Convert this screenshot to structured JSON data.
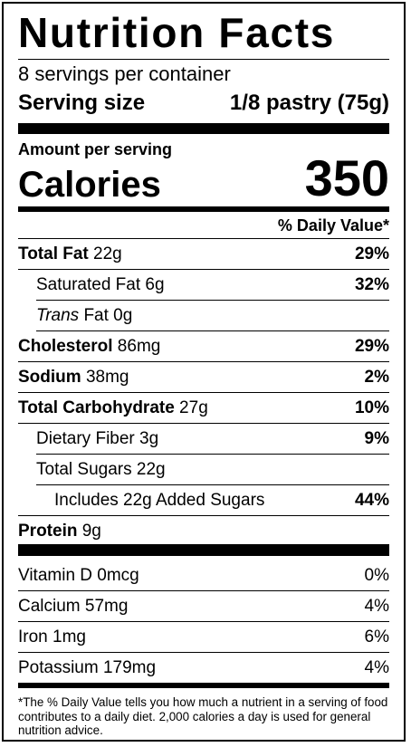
{
  "title": "Nutrition Facts",
  "servings_per_container": "8 servings per container",
  "serving_size_label": "Serving size",
  "serving_size_value": "1/8 pastry (75g)",
  "amount_per_serving": "Amount per serving",
  "calories_label": "Calories",
  "calories_value": "350",
  "daily_value_header": "% Daily Value*",
  "nutrients": {
    "total_fat": {
      "label": "Total Fat",
      "amount": " 22g",
      "dv": "29%"
    },
    "sat_fat": {
      "label": "Saturated Fat 6g",
      "dv": "32%"
    },
    "trans_fat": {
      "label": "Trans",
      "amount": " Fat 0g"
    },
    "cholesterol": {
      "label": "Cholesterol",
      "amount": " 86mg",
      "dv": "29%"
    },
    "sodium": {
      "label": "Sodium",
      "amount": " 38mg",
      "dv": "2%"
    },
    "total_carb": {
      "label": "Total Carbohydrate",
      "amount": " 27g",
      "dv": "10%"
    },
    "fiber": {
      "label": "Dietary Fiber 3g",
      "dv": "9%"
    },
    "sugars": {
      "label": "Total Sugars 22g"
    },
    "added_sugars": {
      "label": "Includes 22g Added Sugars",
      "dv": "44%"
    },
    "protein": {
      "label": "Protein",
      "amount": " 9g"
    }
  },
  "vitamins": [
    {
      "label": "Vitamin D  0mcg",
      "dv": "0%"
    },
    {
      "label": "Calcium 57mg",
      "dv": "4%"
    },
    {
      "label": "Iron 1mg",
      "dv": "6%"
    },
    {
      "label": "Potassium 179mg",
      "dv": "4%"
    }
  ],
  "footnote": "*The % Daily Value tells you how much a nutrient in a serving of food contributes to a daily diet. 2,000 calories a day is used for general nutrition advice."
}
